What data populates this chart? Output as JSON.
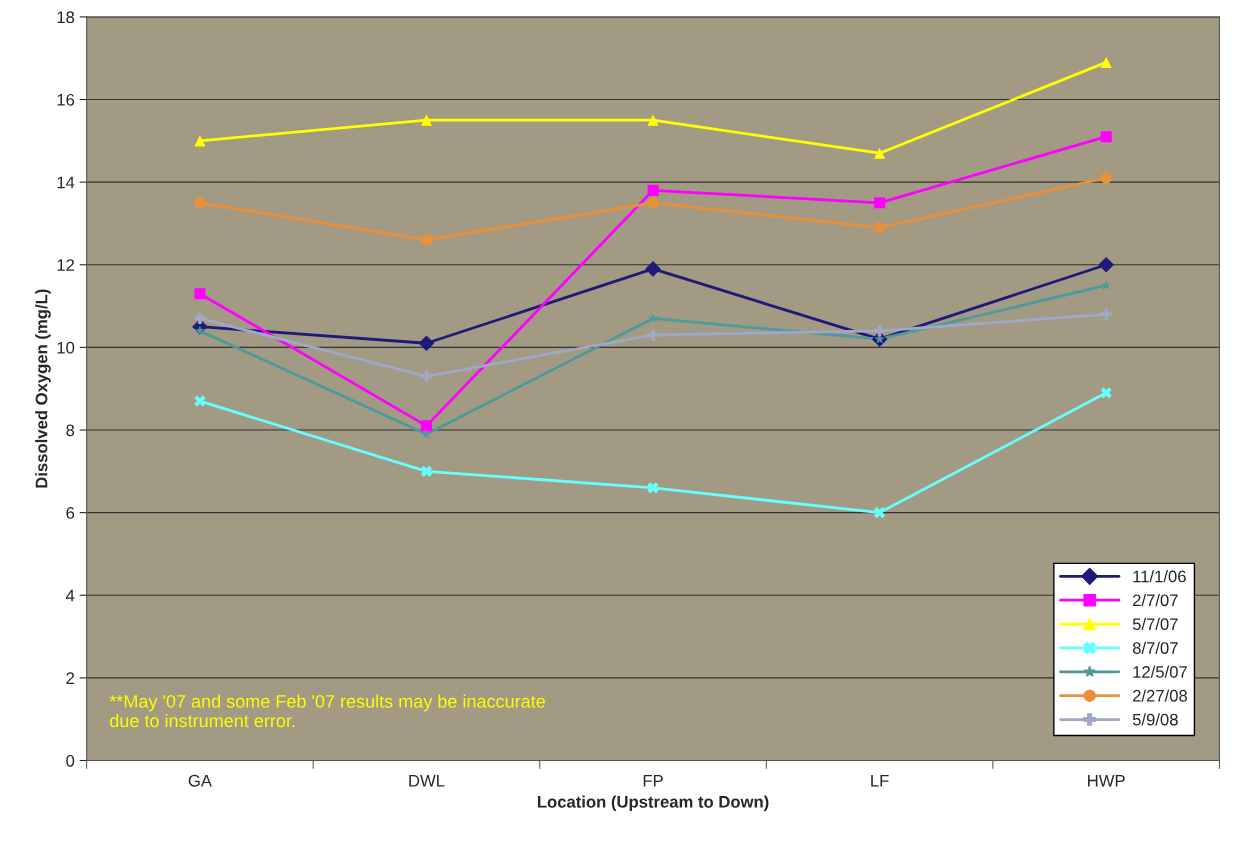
{
  "chart_data": {
    "type": "line",
    "xlabel": "Location (Upstream to Down)",
    "ylabel": "Dissolved Oxygen (mg/L)",
    "categories": [
      "GA",
      "DWL",
      "FP",
      "LF",
      "HWP"
    ],
    "series": [
      {
        "name": "11/1/06",
        "color": "#1f1a7a",
        "marker": "diamond",
        "values": [
          10.5,
          10.1,
          11.9,
          10.2,
          12.0
        ]
      },
      {
        "name": "2/7/07",
        "color": "#ff00ff",
        "marker": "square",
        "values": [
          11.3,
          8.1,
          13.8,
          13.5,
          15.1
        ]
      },
      {
        "name": "5/7/07",
        "color": "#ffff00",
        "marker": "triangle",
        "values": [
          15.0,
          15.5,
          15.5,
          14.7,
          16.9
        ]
      },
      {
        "name": "8/7/07",
        "color": "#66ffff",
        "marker": "cross",
        "values": [
          8.7,
          7.0,
          6.6,
          6.0,
          8.9
        ]
      },
      {
        "name": "12/5/07",
        "color": "#4e9a9a",
        "marker": "star",
        "values": [
          10.4,
          7.9,
          10.7,
          10.2,
          11.5
        ]
      },
      {
        "name": "2/27/08",
        "color": "#e8913a",
        "marker": "circle",
        "values": [
          13.5,
          12.6,
          13.5,
          12.9,
          14.1
        ]
      },
      {
        "name": "5/9/08",
        "color": "#a0a8c8",
        "marker": "plus",
        "values": [
          10.7,
          9.3,
          10.3,
          10.4,
          10.8
        ]
      }
    ],
    "ylim": [
      0,
      18
    ],
    "yticks": [
      0,
      2,
      4,
      6,
      8,
      10,
      12,
      14,
      16,
      18
    ],
    "grid": "y",
    "legend": "bottom right",
    "line_style": "solid",
    "annotations": [
      "**May '07 and some Feb '07 results may be inaccurate due to instrument error."
    ]
  }
}
